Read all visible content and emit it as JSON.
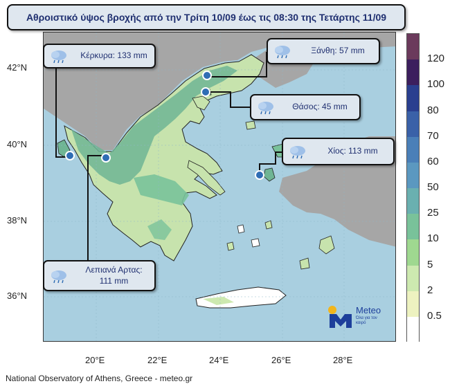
{
  "title": "Αθροιστικό ύψος βροχής από την Τρίτη 10/09 έως τις 08:30 της Τετάρτης 11/09",
  "map": {
    "lat_labels": [
      "42°N",
      "40°N",
      "38°N",
      "36°N"
    ],
    "lon_labels": [
      "20°E",
      "22°E",
      "24°E",
      "26°E",
      "28°E"
    ],
    "colors": {
      "sea": "#a9cfe0",
      "foreign_land": "#a6a6a6",
      "greece_land": "#c7e3ad",
      "heavy_rain": "#6fb594",
      "station": "#2f6db4"
    }
  },
  "callouts": [
    {
      "id": "kerkyra",
      "text": "Κέρκυρα: 133 mm",
      "icon": "rain-cloud-icon"
    },
    {
      "id": "xanthi",
      "text": "Ξάνθη: 57 mm",
      "icon": "rain-cloud-icon"
    },
    {
      "id": "thasos",
      "text": "Θάσος: 45 mm",
      "icon": "rain-cloud-icon"
    },
    {
      "id": "chios",
      "text": "Χίος: 113 mm",
      "icon": "rain-cloud-icon"
    },
    {
      "id": "lepiana",
      "line1": "Λεπιανά Αρτας:",
      "line2": "111 mm",
      "icon": "rain-cloud-icon"
    }
  ],
  "legend": {
    "labels": [
      "120",
      "100",
      "80",
      "70",
      "60",
      "50",
      "25",
      "10",
      "5",
      "2",
      "0.5"
    ],
    "colors": [
      "#6b3a5c",
      "#3c1f5e",
      "#2a3f8f",
      "#3a61a8",
      "#4a7fb8",
      "#5b98c0",
      "#6ab0b0",
      "#79c29a",
      "#9fd890",
      "#cde9b0",
      "#edf2c0",
      "#ffffff"
    ]
  },
  "logo": {
    "name": "Meteo",
    "tagline": "Όλα για τον καιρό"
  },
  "footer": "National Observatory of Athens, Greece - meteo.gr"
}
